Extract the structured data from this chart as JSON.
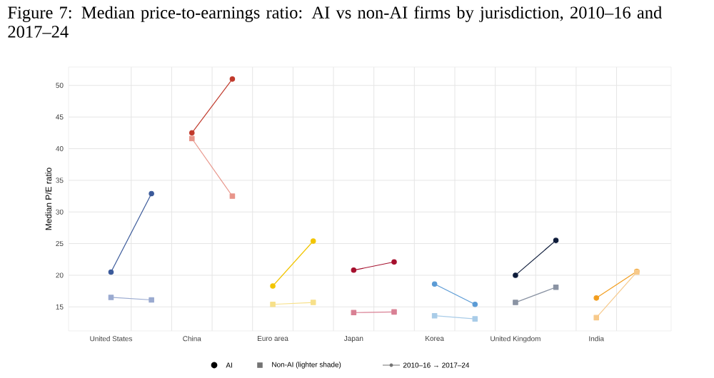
{
  "chart_data": {
    "type": "line",
    "title": "Figure 7: Median price-to-earnings ratio: AI vs non-AI firms by jurisdiction, 2010–16 and 2017–24",
    "ylabel": "Median P/E ratio",
    "categories": [
      "United States",
      null,
      "China",
      null,
      "Euro area",
      null,
      "Japan",
      null,
      "Korea",
      null,
      "United Kingdom",
      null,
      "India",
      null
    ],
    "ylim": [
      11.2,
      52.9
    ],
    "yticks": [
      15,
      20,
      25,
      30,
      35,
      40,
      45,
      50
    ],
    "grid": true,
    "annotations": [
      "AI",
      "Non-AI (lighter shade)",
      "2010–16 → 2017–24"
    ],
    "series": [
      {
        "color": "#3b5a9a",
        "marker": "circle",
        "values": [
          20.5,
          32.9,
          null,
          null,
          null,
          null,
          null,
          null,
          null,
          null,
          null,
          null,
          null,
          null
        ]
      },
      {
        "color": "#9aaad0",
        "marker": "square",
        "values": [
          16.5,
          16.1,
          null,
          null,
          null,
          null,
          null,
          null,
          null,
          null,
          null,
          null,
          null,
          null
        ]
      },
      {
        "color": "#c0392b",
        "marker": "circle",
        "values": [
          null,
          null,
          42.5,
          51.0,
          null,
          null,
          null,
          null,
          null,
          null,
          null,
          null,
          null,
          null
        ]
      },
      {
        "color": "#e8958a",
        "marker": "square",
        "values": [
          null,
          null,
          41.6,
          32.5,
          null,
          null,
          null,
          null,
          null,
          null,
          null,
          null,
          null,
          null
        ]
      },
      {
        "color": "#f2c500",
        "marker": "circle",
        "values": [
          null,
          null,
          null,
          null,
          18.3,
          25.4,
          null,
          null,
          null,
          null,
          null,
          null,
          null,
          null
        ]
      },
      {
        "color": "#f7e08a",
        "marker": "square",
        "values": [
          null,
          null,
          null,
          null,
          15.4,
          15.7,
          null,
          null,
          null,
          null,
          null,
          null,
          null,
          null
        ]
      },
      {
        "color": "#a50f2d",
        "marker": "circle",
        "values": [
          null,
          null,
          null,
          null,
          null,
          null,
          20.8,
          22.1,
          null,
          null,
          null,
          null,
          null,
          null
        ]
      },
      {
        "color": "#d98094",
        "marker": "square",
        "values": [
          null,
          null,
          null,
          null,
          null,
          null,
          14.1,
          14.2,
          null,
          null,
          null,
          null,
          null,
          null
        ]
      },
      {
        "color": "#5b9bd5",
        "marker": "circle",
        "values": [
          null,
          null,
          null,
          null,
          null,
          null,
          null,
          null,
          18.6,
          15.4,
          null,
          null,
          null,
          null
        ]
      },
      {
        "color": "#a9cce8",
        "marker": "square",
        "values": [
          null,
          null,
          null,
          null,
          null,
          null,
          null,
          null,
          13.6,
          13.1,
          null,
          null,
          null,
          null
        ]
      },
      {
        "color": "#0d1b3a",
        "marker": "circle",
        "values": [
          null,
          null,
          null,
          null,
          null,
          null,
          null,
          null,
          null,
          null,
          20.0,
          25.5,
          null,
          null
        ]
      },
      {
        "color": "#8a93a3",
        "marker": "square",
        "values": [
          null,
          null,
          null,
          null,
          null,
          null,
          null,
          null,
          null,
          null,
          15.7,
          18.1,
          null,
          null
        ]
      },
      {
        "color": "#f29d1e",
        "marker": "circle",
        "values": [
          null,
          null,
          null,
          null,
          null,
          null,
          null,
          null,
          null,
          null,
          null,
          null,
          16.4,
          20.6
        ]
      },
      {
        "color": "#f7c98a",
        "marker": "square",
        "values": [
          null,
          null,
          null,
          null,
          null,
          null,
          null,
          null,
          null,
          null,
          null,
          null,
          13.3,
          20.5
        ]
      }
    ]
  }
}
